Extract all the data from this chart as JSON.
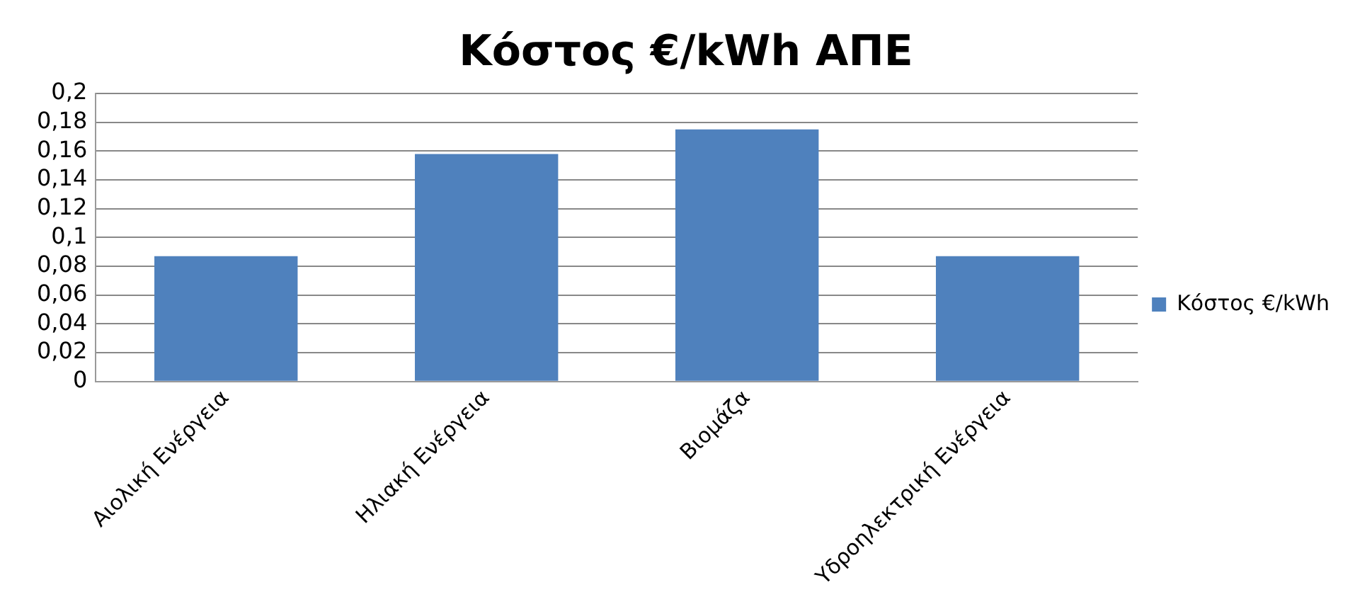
{
  "chart_data": {
    "type": "bar",
    "title": "Κόστος €/kWh ΑΠΕ",
    "categories": [
      "Αιολική Ενέργεια",
      "Ηλιακή Ενέργεια",
      "Βιομάζα",
      "Υδροηλεκτρική Ενέργεια"
    ],
    "series": [
      {
        "name": "Κόστος €/kWh",
        "color": "#4f81bd",
        "values": [
          0.087,
          0.158,
          0.175,
          0.087
        ]
      }
    ],
    "ylim": [
      0,
      0.2
    ],
    "yticks": [
      0,
      {
        "value": 0.02,
        "label": "0,02"
      },
      {
        "value": 0.04,
        "label": "0,04"
      },
      {
        "value": 0.06,
        "label": "0,06"
      },
      {
        "value": 0.08,
        "label": "0,08"
      },
      {
        "value": 0.1,
        "label": "0,1"
      },
      {
        "value": 0.12,
        "label": "0,12"
      },
      {
        "value": 0.14,
        "label": "0,14"
      },
      {
        "value": 0.16,
        "label": "0,16"
      },
      {
        "value": 0.18,
        "label": "0,18"
      },
      {
        "value": 0.2,
        "label": "0,2"
      }
    ],
    "grid": "y",
    "legend": "right"
  }
}
